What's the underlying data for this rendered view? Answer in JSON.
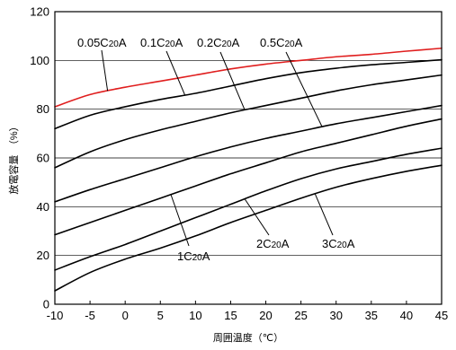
{
  "chart_data": {
    "type": "line",
    "title": "",
    "xlabel": "周囲温度（℃）",
    "ylabel": "放電容量　（%）",
    "xlim": [
      -10,
      45
    ],
    "ylim": [
      0,
      120
    ],
    "x_ticks": [
      -10,
      -5,
      0,
      5,
      10,
      15,
      20,
      25,
      30,
      35,
      40,
      45
    ],
    "y_ticks": [
      0,
      20,
      40,
      60,
      80,
      100,
      120
    ],
    "grid": "horizontal",
    "x": [
      -10,
      -5,
      0,
      5,
      10,
      15,
      20,
      25,
      30,
      35,
      40,
      45
    ],
    "series": [
      {
        "name": "0.05C20A",
        "main": "0.05C",
        "sub": "20",
        "tail": "A",
        "color": "#e01e1e",
        "values": [
          81,
          86,
          89,
          91.5,
          94,
          96.5,
          98.5,
          100,
          101.5,
          102.5,
          103.8,
          105
        ]
      },
      {
        "name": "0.1C20A",
        "main": "0.1C",
        "sub": "20",
        "tail": "A",
        "color": "#000000",
        "values": [
          72,
          77.5,
          81,
          84,
          86.5,
          89.5,
          92.5,
          95,
          96.8,
          98.2,
          99.2,
          100.3
        ]
      },
      {
        "name": "0.2C20A",
        "main": "0.2C",
        "sub": "20",
        "tail": "A",
        "color": "#000000",
        "values": [
          56,
          62.5,
          67.5,
          71.5,
          75,
          78.5,
          81.5,
          84.5,
          87.5,
          90,
          92,
          94
        ]
      },
      {
        "name": "0.5C20A",
        "main": "0.5C",
        "sub": "20",
        "tail": "A",
        "color": "#000000",
        "values": [
          42,
          47,
          51.5,
          56,
          60.5,
          64.5,
          68,
          71,
          74,
          76.5,
          79,
          81.5
        ]
      },
      {
        "name": "1C20A",
        "main": "1C",
        "sub": "20",
        "tail": "A",
        "color": "#000000",
        "values": [
          28.5,
          33.5,
          38.5,
          43.5,
          48.5,
          53.5,
          58,
          62.5,
          66,
          69.5,
          73,
          76
        ]
      },
      {
        "name": "2C20A",
        "main": "2C",
        "sub": "20",
        "tail": "A",
        "color": "#000000",
        "values": [
          14,
          19.5,
          24.5,
          30,
          35.5,
          41,
          46.5,
          51.5,
          55.5,
          58.5,
          61.5,
          64
        ]
      },
      {
        "name": "3C20A",
        "main": "3C",
        "sub": "20",
        "tail": "A",
        "color": "#000000",
        "values": [
          5.5,
          13,
          18.5,
          23,
          28,
          33.5,
          38.5,
          43.5,
          48,
          51.5,
          54.5,
          57
        ]
      }
    ]
  }
}
